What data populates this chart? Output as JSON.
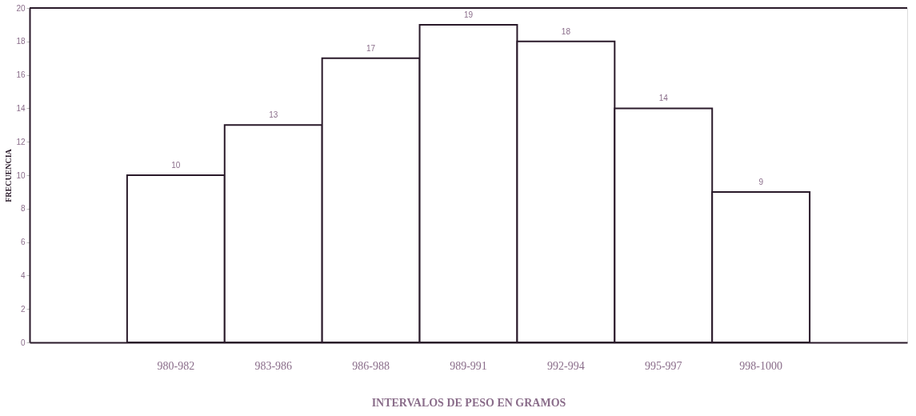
{
  "chart_data": {
    "type": "bar",
    "xlabel": "INTERVALOS DE PESO EN GRAMOS",
    "ylabel": "FRECUENCIA",
    "categories": [
      null,
      "980-982",
      "983-986",
      "986-988",
      "989-991",
      "992-994",
      "995-997",
      "998-1000",
      null
    ],
    "values": [
      null,
      10,
      13,
      17,
      19,
      18,
      14,
      9,
      null
    ],
    "color": "#ffffff",
    "ylim": [
      0,
      20
    ],
    "yticks": [
      0,
      2,
      4,
      6,
      8,
      10,
      12,
      14,
      16,
      18,
      20
    ],
    "data_labels": true
  }
}
